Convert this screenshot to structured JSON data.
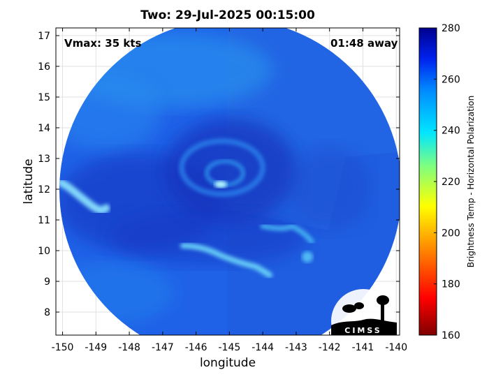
{
  "title": "Two: 29-Jul-2025 00:15:00",
  "xlabel": "longitude",
  "ylabel": "latitude",
  "annotations": {
    "vmax": "Vmax: 35 kts",
    "time_away": "01:48 away"
  },
  "colorbar": {
    "label": "Brightness Temp - Horizontal Polarization",
    "ticks": [
      "160",
      "180",
      "200",
      "220",
      "240",
      "260",
      "280"
    ],
    "range": [
      160,
      280
    ]
  },
  "map": {
    "x_ticks": [
      "-150",
      "-149",
      "-148",
      "-147",
      "-146",
      "-145",
      "-144",
      "-143",
      "-142",
      "-141",
      "-140"
    ],
    "y_ticks": [
      "8",
      "9",
      "10",
      "11",
      "12",
      "13",
      "14",
      "15",
      "16",
      "17"
    ],
    "xlim": [
      -150.2,
      -139.9
    ],
    "ylim": [
      7.25,
      17.25
    ],
    "grid": true,
    "storm_center": {
      "lon": -145.2,
      "lat": 12.5
    },
    "colors": {
      "background": "#1e5fe8",
      "warm": "#1131b8",
      "cool": "#2ab6f0",
      "coldest": "#b8f8ff"
    }
  },
  "logo": {
    "text": "CIMSS"
  }
}
